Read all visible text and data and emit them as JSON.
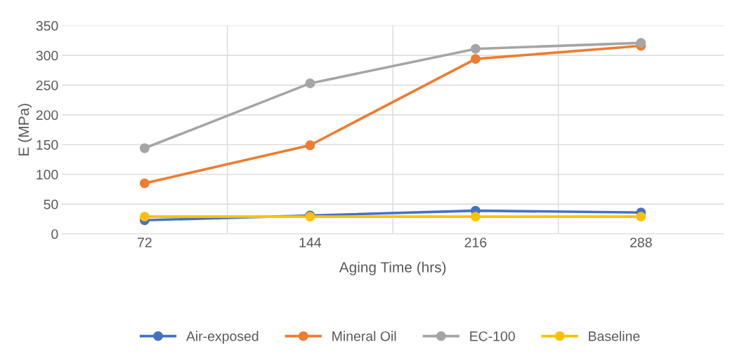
{
  "chart_data": {
    "type": "line",
    "xlabel": "Aging Time (hrs)",
    "ylabel": "E (MPa)",
    "categories": [
      "72",
      "144",
      "216",
      "288"
    ],
    "series": [
      {
        "name": "Air-exposed",
        "color": "#4472c4",
        "values": [
          23,
          31,
          39,
          36
        ]
      },
      {
        "name": "Mineral Oil",
        "color": "#ed7d31",
        "values": [
          85,
          149,
          294,
          316
        ]
      },
      {
        "name": "EC-100",
        "color": "#a5a5a5",
        "values": [
          144,
          253,
          311,
          321
        ]
      },
      {
        "name": "Baseline",
        "color": "#ffc000",
        "values": [
          29,
          29,
          29,
          29
        ]
      }
    ],
    "ylim": [
      0,
      350
    ],
    "yticks": [
      0,
      50,
      100,
      150,
      200,
      250,
      300,
      350
    ],
    "grid": true,
    "legend": "bottom",
    "marker": "circle",
    "line_style": "solid"
  }
}
